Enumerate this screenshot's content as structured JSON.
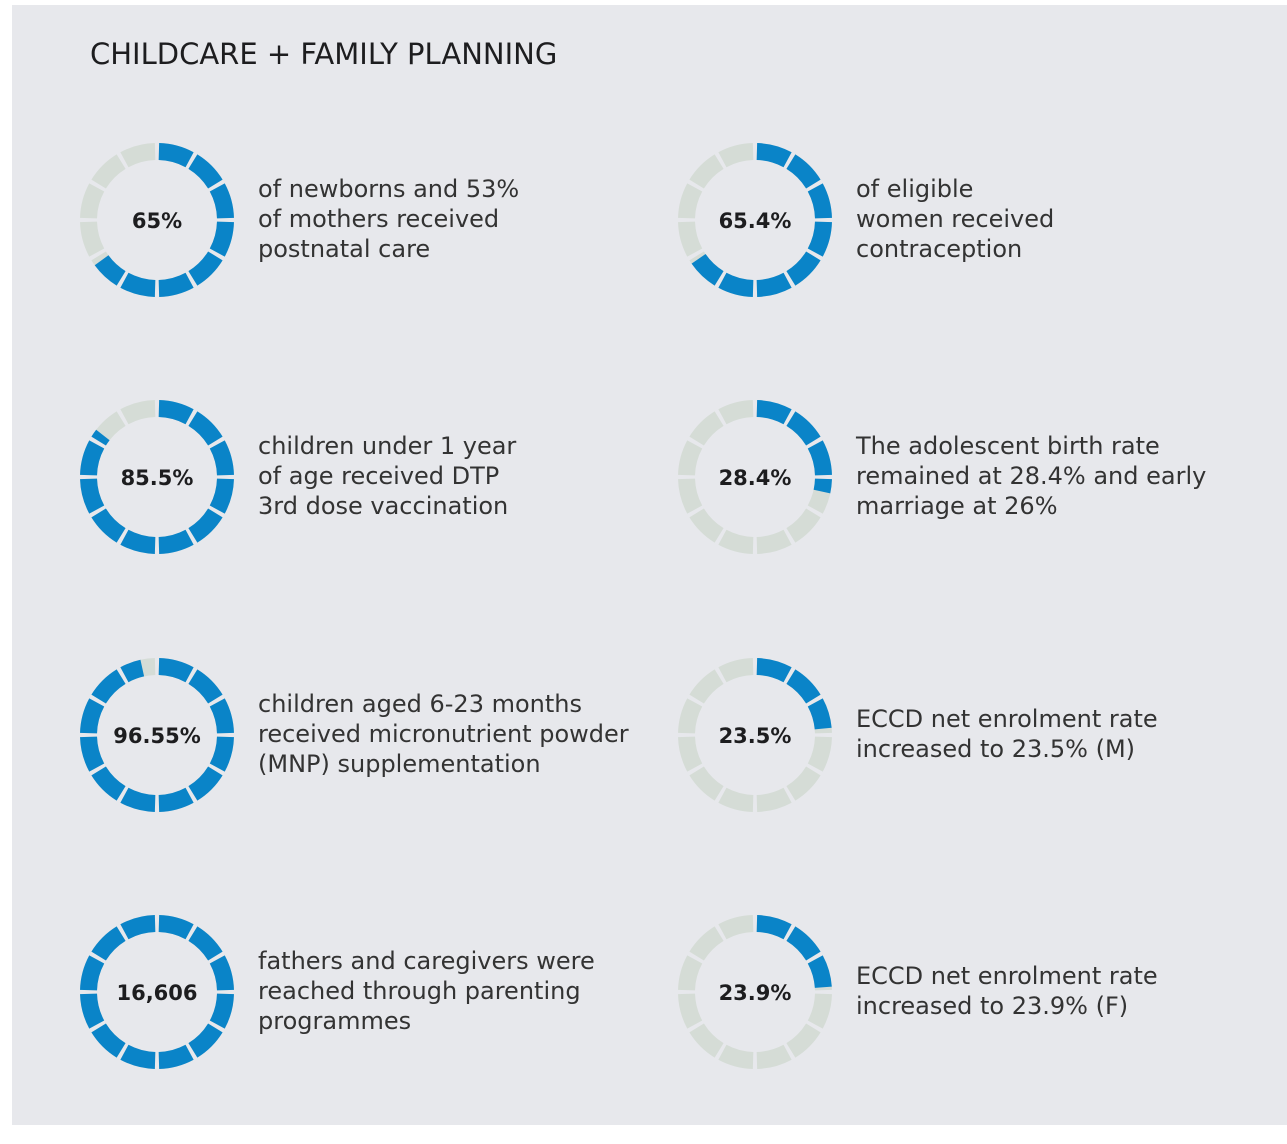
{
  "title": "CHILDCARE + FAMILY PLANNING",
  "items": [
    {
      "value": 65,
      "value_label": "65%",
      "lines": [
        "of newborns and 53%",
        "of mothers received",
        "postnatal care"
      ]
    },
    {
      "value": 65.4,
      "value_label": "65.4%",
      "lines": [
        "of eligible",
        "women received",
        "contraception"
      ]
    },
    {
      "value": 85.5,
      "value_label": "85.5%",
      "lines": [
        "children under 1 year",
        "of age received DTP",
        "3rd dose vaccination"
      ]
    },
    {
      "value": 28.4,
      "value_label": "28.4%",
      "lines": [
        "The adolescent birth rate",
        "remained at 28.4% and early",
        "marriage at 26%"
      ]
    },
    {
      "value": 96.55,
      "value_label": "96.55%",
      "lines": [
        "children aged 6-23 months",
        "received micronutrient powder",
        "(MNP) supplementation"
      ]
    },
    {
      "value": 23.5,
      "value_label": "23.5%",
      "lines": [
        "ECCD net enrolment rate",
        "increased to 23.5% (M)"
      ]
    },
    {
      "value": 16606,
      "value_label": "16,606",
      "ring_full": true,
      "lines": [
        "fathers and caregivers were",
        "reached through parenting",
        "programmes"
      ]
    },
    {
      "value": 23.9,
      "value_label": "23.9%",
      "lines": [
        "ECCD net enrolment rate",
        "increased to 23.9% (F)"
      ]
    }
  ]
}
